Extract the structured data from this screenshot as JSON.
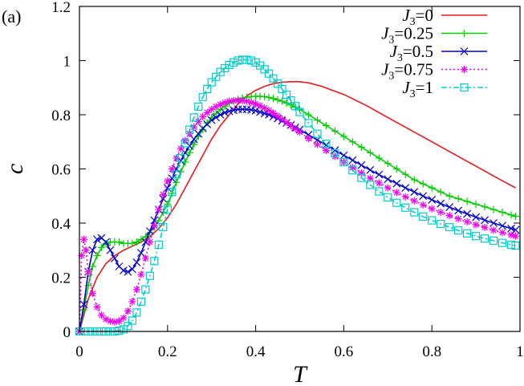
{
  "panel_label": "(a)",
  "chart_data": {
    "type": "line",
    "xlabel": "T",
    "ylabel": "c",
    "xlim": [
      0,
      1
    ],
    "ylim": [
      0,
      1.2
    ],
    "xticks": [
      0,
      0.2,
      0.4,
      0.6,
      0.8,
      1
    ],
    "yticks": [
      0,
      0.2,
      0.4,
      0.6,
      0.8,
      1,
      1.2
    ],
    "xtick_labels": [
      "0",
      "0.2",
      "0.4",
      "0.6",
      "0.8",
      "1"
    ],
    "ytick_labels": [
      "0",
      "0.2",
      "0.4",
      "0.6",
      "0.8",
      "1",
      "1.2"
    ],
    "grid": false,
    "legend_position": "top-right",
    "series": [
      {
        "name": "J3=0",
        "legend_sub": "3",
        "legend_value": "0",
        "color": "#e41a1c",
        "marker": "none",
        "line": "solid",
        "x": [
          0,
          0.02,
          0.04,
          0.06,
          0.08,
          0.1,
          0.12,
          0.14,
          0.16,
          0.18,
          0.2,
          0.22,
          0.24,
          0.26,
          0.28,
          0.3,
          0.32,
          0.34,
          0.36,
          0.38,
          0.4,
          0.42,
          0.44,
          0.46,
          0.48,
          0.5,
          0.52,
          0.55,
          0.6,
          0.65,
          0.7,
          0.75,
          0.8,
          0.85,
          0.9,
          0.95,
          0.99
        ],
        "y": [
          0,
          0.12,
          0.2,
          0.25,
          0.28,
          0.3,
          0.315,
          0.33,
          0.35,
          0.38,
          0.42,
          0.47,
          0.53,
          0.59,
          0.65,
          0.71,
          0.76,
          0.8,
          0.84,
          0.87,
          0.89,
          0.905,
          0.915,
          0.92,
          0.922,
          0.922,
          0.918,
          0.905,
          0.875,
          0.835,
          0.79,
          0.745,
          0.7,
          0.655,
          0.61,
          0.565,
          0.53
        ]
      },
      {
        "name": "J3=0.25",
        "legend_sub": "3",
        "legend_value": "0.25",
        "color": "#00cc00",
        "marker": "plus",
        "line": "solid",
        "x": [
          0,
          0.01,
          0.02,
          0.03,
          0.04,
          0.05,
          0.06,
          0.07,
          0.08,
          0.09,
          0.1,
          0.11,
          0.12,
          0.13,
          0.14,
          0.15,
          0.16,
          0.17,
          0.18,
          0.19,
          0.2,
          0.21,
          0.22,
          0.23,
          0.24,
          0.25,
          0.26,
          0.27,
          0.28,
          0.29,
          0.3,
          0.31,
          0.32,
          0.33,
          0.34,
          0.35,
          0.36,
          0.37,
          0.38,
          0.39,
          0.4,
          0.41,
          0.42,
          0.43,
          0.44,
          0.45,
          0.46,
          0.47,
          0.48,
          0.49,
          0.5,
          0.52,
          0.54,
          0.56,
          0.58,
          0.6,
          0.62,
          0.64,
          0.66,
          0.68,
          0.7,
          0.72,
          0.74,
          0.76,
          0.78,
          0.8,
          0.82,
          0.84,
          0.86,
          0.88,
          0.9,
          0.92,
          0.94,
          0.96,
          0.98,
          0.99
        ],
        "y": [
          0,
          0.08,
          0.17,
          0.24,
          0.28,
          0.31,
          0.325,
          0.33,
          0.33,
          0.33,
          0.325,
          0.325,
          0.325,
          0.33,
          0.34,
          0.35,
          0.365,
          0.385,
          0.41,
          0.44,
          0.47,
          0.51,
          0.55,
          0.59,
          0.625,
          0.66,
          0.69,
          0.72,
          0.745,
          0.77,
          0.79,
          0.805,
          0.82,
          0.832,
          0.843,
          0.85,
          0.857,
          0.862,
          0.865,
          0.867,
          0.868,
          0.868,
          0.867,
          0.864,
          0.86,
          0.855,
          0.85,
          0.843,
          0.836,
          0.828,
          0.82,
          0.8,
          0.78,
          0.76,
          0.74,
          0.72,
          0.7,
          0.68,
          0.66,
          0.64,
          0.62,
          0.6,
          0.58,
          0.56,
          0.545,
          0.53,
          0.515,
          0.5,
          0.49,
          0.48,
          0.47,
          0.46,
          0.45,
          0.44,
          0.43,
          0.425
        ]
      },
      {
        "name": "J3=0.5",
        "legend_sub": "3",
        "legend_value": "0.5",
        "color": "#0000cc",
        "marker": "cross",
        "line": "solid",
        "x": [
          0,
          0.01,
          0.02,
          0.03,
          0.04,
          0.05,
          0.06,
          0.07,
          0.08,
          0.09,
          0.1,
          0.11,
          0.12,
          0.13,
          0.14,
          0.15,
          0.16,
          0.17,
          0.18,
          0.19,
          0.2,
          0.21,
          0.22,
          0.23,
          0.24,
          0.25,
          0.26,
          0.27,
          0.28,
          0.29,
          0.3,
          0.31,
          0.32,
          0.33,
          0.34,
          0.35,
          0.36,
          0.37,
          0.38,
          0.39,
          0.4,
          0.41,
          0.42,
          0.43,
          0.44,
          0.45,
          0.46,
          0.47,
          0.48,
          0.49,
          0.5,
          0.52,
          0.54,
          0.56,
          0.58,
          0.6,
          0.62,
          0.64,
          0.66,
          0.68,
          0.7,
          0.72,
          0.74,
          0.76,
          0.78,
          0.8,
          0.82,
          0.84,
          0.86,
          0.88,
          0.9,
          0.92,
          0.94,
          0.96,
          0.98,
          0.99
        ],
        "y": [
          0,
          0.1,
          0.22,
          0.3,
          0.34,
          0.345,
          0.33,
          0.3,
          0.27,
          0.24,
          0.225,
          0.22,
          0.23,
          0.255,
          0.29,
          0.33,
          0.37,
          0.41,
          0.45,
          0.49,
          0.53,
          0.565,
          0.6,
          0.63,
          0.66,
          0.685,
          0.71,
          0.73,
          0.75,
          0.765,
          0.78,
          0.79,
          0.8,
          0.808,
          0.813,
          0.817,
          0.82,
          0.82,
          0.82,
          0.818,
          0.815,
          0.81,
          0.805,
          0.8,
          0.793,
          0.786,
          0.778,
          0.77,
          0.762,
          0.753,
          0.745,
          0.726,
          0.707,
          0.688,
          0.669,
          0.65,
          0.632,
          0.614,
          0.596,
          0.579,
          0.562,
          0.546,
          0.53,
          0.515,
          0.5,
          0.486,
          0.472,
          0.459,
          0.446,
          0.434,
          0.422,
          0.411,
          0.4,
          0.39,
          0.38,
          0.375
        ]
      },
      {
        "name": "J3=0.75",
        "legend_sub": "3",
        "legend_value": "0.75",
        "color": "#ee00ee",
        "marker": "star",
        "line": "dotted",
        "x": [
          0,
          0.005,
          0.01,
          0.015,
          0.02,
          0.03,
          0.04,
          0.05,
          0.06,
          0.07,
          0.08,
          0.09,
          0.1,
          0.11,
          0.12,
          0.13,
          0.14,
          0.15,
          0.16,
          0.17,
          0.18,
          0.19,
          0.2,
          0.21,
          0.22,
          0.23,
          0.24,
          0.25,
          0.26,
          0.27,
          0.28,
          0.29,
          0.3,
          0.31,
          0.32,
          0.33,
          0.34,
          0.35,
          0.36,
          0.37,
          0.38,
          0.39,
          0.4,
          0.41,
          0.42,
          0.43,
          0.44,
          0.45,
          0.46,
          0.47,
          0.48,
          0.49,
          0.5,
          0.52,
          0.54,
          0.56,
          0.58,
          0.6,
          0.62,
          0.64,
          0.66,
          0.68,
          0.7,
          0.72,
          0.74,
          0.76,
          0.78,
          0.8,
          0.82,
          0.84,
          0.86,
          0.88,
          0.9,
          0.92,
          0.94,
          0.96,
          0.98,
          0.99
        ],
        "y": [
          0,
          0.28,
          0.34,
          0.3,
          0.22,
          0.14,
          0.09,
          0.06,
          0.045,
          0.038,
          0.035,
          0.038,
          0.05,
          0.075,
          0.11,
          0.155,
          0.21,
          0.27,
          0.33,
          0.39,
          0.45,
          0.505,
          0.555,
          0.6,
          0.64,
          0.675,
          0.705,
          0.73,
          0.755,
          0.775,
          0.793,
          0.808,
          0.82,
          0.83,
          0.838,
          0.845,
          0.85,
          0.852,
          0.853,
          0.852,
          0.85,
          0.845,
          0.84,
          0.833,
          0.825,
          0.816,
          0.806,
          0.795,
          0.784,
          0.772,
          0.76,
          0.748,
          0.736,
          0.712,
          0.69,
          0.668,
          0.646,
          0.625,
          0.605,
          0.585,
          0.566,
          0.548,
          0.53,
          0.513,
          0.497,
          0.482,
          0.467,
          0.453,
          0.44,
          0.428,
          0.416,
          0.405,
          0.394,
          0.384,
          0.374,
          0.365,
          0.356,
          0.352
        ]
      },
      {
        "name": "J3=1",
        "legend_sub": "3",
        "legend_value": "1",
        "color": "#00cccc",
        "marker": "square",
        "line": "dashdot",
        "x": [
          0,
          0.01,
          0.02,
          0.03,
          0.04,
          0.05,
          0.06,
          0.07,
          0.08,
          0.09,
          0.1,
          0.11,
          0.12,
          0.13,
          0.14,
          0.15,
          0.16,
          0.17,
          0.18,
          0.19,
          0.2,
          0.21,
          0.22,
          0.23,
          0.24,
          0.25,
          0.26,
          0.27,
          0.28,
          0.29,
          0.3,
          0.31,
          0.32,
          0.33,
          0.34,
          0.35,
          0.36,
          0.37,
          0.38,
          0.39,
          0.4,
          0.41,
          0.42,
          0.43,
          0.44,
          0.45,
          0.46,
          0.47,
          0.48,
          0.49,
          0.5,
          0.52,
          0.54,
          0.56,
          0.58,
          0.6,
          0.62,
          0.64,
          0.66,
          0.68,
          0.7,
          0.72,
          0.74,
          0.76,
          0.78,
          0.8,
          0.82,
          0.84,
          0.86,
          0.88,
          0.9,
          0.92,
          0.94,
          0.96,
          0.98,
          0.99
        ],
        "y": [
          0,
          0,
          0,
          0,
          0,
          0,
          0,
          0,
          0,
          0.003,
          0.008,
          0.02,
          0.04,
          0.07,
          0.11,
          0.155,
          0.205,
          0.26,
          0.32,
          0.385,
          0.45,
          0.515,
          0.58,
          0.64,
          0.695,
          0.745,
          0.79,
          0.83,
          0.865,
          0.895,
          0.92,
          0.94,
          0.958,
          0.972,
          0.984,
          0.993,
          1.0,
          1.003,
          1.003,
          1.0,
          0.993,
          0.982,
          0.968,
          0.952,
          0.934,
          0.915,
          0.895,
          0.874,
          0.853,
          0.832,
          0.81,
          0.769,
          0.73,
          0.693,
          0.658,
          0.625,
          0.595,
          0.567,
          0.541,
          0.517,
          0.495,
          0.475,
          0.457,
          0.44,
          0.424,
          0.41,
          0.397,
          0.385,
          0.373,
          0.362,
          0.352,
          0.343,
          0.335,
          0.327,
          0.32,
          0.317
        ]
      }
    ]
  }
}
